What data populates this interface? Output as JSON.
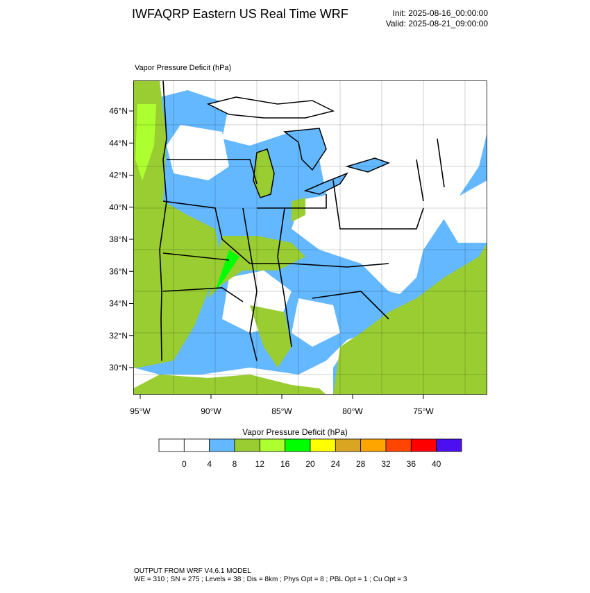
{
  "header": {
    "title": "IWFAQRP Eastern US Real Time WRF",
    "init": "Init: 2025-08-16_00:00:00",
    "valid": "Valid: 2025-08-21_09:00:00"
  },
  "map": {
    "label": "Vapor Pressure Deficit   (hPa)",
    "lat_labels": [
      "46°N",
      "44°N",
      "42°N",
      "40°N",
      "38°N",
      "36°N",
      "34°N",
      "32°N",
      "30°N"
    ],
    "lon_labels": [
      "95°W",
      "90°W",
      "85°W",
      "80°W",
      "75°W"
    ]
  },
  "colorbar": {
    "title": "Vapor Pressure Deficit  (hPa)",
    "colors": [
      "#ffffff",
      "#ffffff",
      "#63b8ff",
      "#9acd32",
      "#adff2f",
      "#00ff00",
      "#ffff00",
      "#daa520",
      "#ffa500",
      "#ff4500",
      "#ff0000",
      "#4b0ff0"
    ],
    "ticks": [
      0,
      4,
      8,
      12,
      16,
      20,
      24,
      28,
      32,
      36,
      40
    ]
  },
  "footer": {
    "line1": "OUTPUT FROM WRF V4.6.1 MODEL",
    "line2": "WE = 310 ; SN = 275 ; Levels = 38 ; Dis = 8km ; Phys Opt = 8 ; PBL Opt = 1 ; Cu Opt = 3"
  }
}
